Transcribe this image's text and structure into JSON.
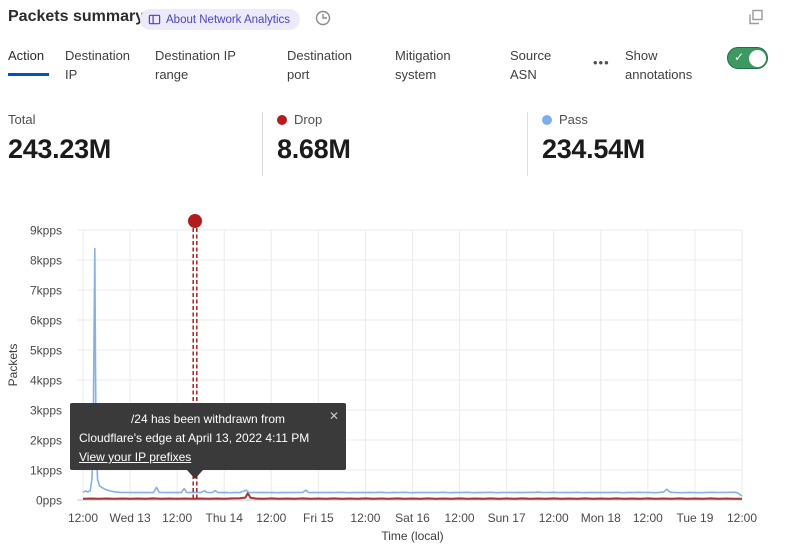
{
  "header": {
    "title": "Packets summary",
    "badge_label": "About Network Analytics",
    "badge_color": "#4a44c4",
    "badge_bg": "#edebfb"
  },
  "tabs": {
    "items": [
      {
        "label": "Action",
        "active": true
      },
      {
        "label": "Destination IP",
        "active": false
      },
      {
        "label": "Destination IP range",
        "active": false
      },
      {
        "label": "Destination port",
        "active": false
      },
      {
        "label": "Mitigation system",
        "active": false
      },
      {
        "label": "Source ASN",
        "active": false
      }
    ],
    "more_label": "•••",
    "show_annotations": {
      "label": "Show annotations",
      "enabled": true,
      "toggle_color": "#3c9960"
    }
  },
  "stats": {
    "cards": [
      {
        "label": "Total",
        "value": "243.23M",
        "dot_color": ""
      },
      {
        "label": "Drop",
        "value": "8.68M",
        "dot_color": "#b51d1d"
      },
      {
        "label": "Pass",
        "value": "234.54M",
        "dot_color": "#7fadea"
      }
    ]
  },
  "tooltip": {
    "line1": "/24 has been withdrawn from",
    "line2": "Cloudflare's edge at April 13, 2022 4:11 PM",
    "link_label": "View your IP prefixes",
    "close_glyph": "✕"
  },
  "chart_data": {
    "type": "line",
    "title": "Packets summary",
    "xlabel": "Time (local)",
    "ylabel": "Packets",
    "ylim": [
      0,
      9000
    ],
    "x_range_hours": [
      0,
      168
    ],
    "grid": true,
    "yticks": {
      "values": [
        0,
        1000,
        2000,
        3000,
        4000,
        5000,
        6000,
        7000,
        8000,
        9000
      ],
      "labels": [
        "0pps",
        "1kpps",
        "2kpps",
        "3kpps",
        "4kpps",
        "5kpps",
        "6kpps",
        "7kpps",
        "8kpps",
        "9kpps"
      ]
    },
    "xticks": {
      "hours": [
        0,
        12,
        24,
        36,
        48,
        60,
        72,
        84,
        96,
        108,
        120,
        132,
        144,
        156,
        168
      ],
      "labels": [
        "12:00",
        "Wed 13",
        "12:00",
        "Thu 14",
        "12:00",
        "Fri 15",
        "12:00",
        "Sat 16",
        "12:00",
        "Sun 17",
        "12:00",
        "Mon 18",
        "12:00",
        "Tue 19",
        "12:00"
      ]
    },
    "annotation": {
      "x_hours": 28.55,
      "color": "#b11c1c",
      "description": "IP prefix /24 withdrawn from Cloudflare's edge, April 13, 2022 4:11 PM"
    },
    "series": [
      {
        "name": "Pass",
        "color": "#84b1e9",
        "points": [
          [
            0,
            260
          ],
          [
            0.6,
            300
          ],
          [
            1.2,
            270
          ],
          [
            1.8,
            300
          ],
          [
            2.3,
            700
          ],
          [
            2.6,
            2200
          ],
          [
            3.0,
            8380
          ],
          [
            3.3,
            2400
          ],
          [
            3.7,
            700
          ],
          [
            4.2,
            470
          ],
          [
            5,
            400
          ],
          [
            6,
            340
          ],
          [
            7,
            300
          ],
          [
            8,
            275
          ],
          [
            9,
            260
          ],
          [
            10,
            250
          ],
          [
            11,
            255
          ],
          [
            12,
            250
          ],
          [
            13,
            245
          ],
          [
            14,
            252
          ],
          [
            15,
            248
          ],
          [
            16,
            252
          ],
          [
            17,
            246
          ],
          [
            18,
            252
          ],
          [
            18.7,
            420
          ],
          [
            19.4,
            258
          ],
          [
            20,
            250
          ],
          [
            21,
            246
          ],
          [
            22,
            252
          ],
          [
            23,
            248
          ],
          [
            24,
            252
          ],
          [
            25,
            246
          ],
          [
            25.8,
            380
          ],
          [
            26.4,
            252
          ],
          [
            27,
            246
          ],
          [
            28,
            255
          ],
          [
            29,
            250
          ],
          [
            30,
            246
          ],
          [
            31,
            310
          ],
          [
            31.6,
            250
          ],
          [
            32.4,
            246
          ],
          [
            33,
            252
          ],
          [
            33.7,
            315
          ],
          [
            34.4,
            250
          ],
          [
            35,
            246
          ],
          [
            36,
            252
          ],
          [
            37,
            248
          ],
          [
            38,
            244
          ],
          [
            39,
            252
          ],
          [
            40,
            248
          ],
          [
            41.6,
            330
          ],
          [
            42.3,
            250
          ],
          [
            43,
            246
          ],
          [
            44,
            252
          ],
          [
            45,
            248
          ],
          [
            46,
            252
          ],
          [
            47,
            246
          ],
          [
            48,
            255
          ],
          [
            49,
            248
          ],
          [
            50,
            244
          ],
          [
            51,
            252
          ],
          [
            52,
            248
          ],
          [
            53,
            252
          ],
          [
            54,
            246
          ],
          [
            55,
            252
          ],
          [
            56,
            250
          ],
          [
            56.8,
            330
          ],
          [
            57.5,
            250
          ],
          [
            58,
            246
          ],
          [
            59,
            252
          ],
          [
            60,
            248
          ],
          [
            61,
            252
          ],
          [
            62,
            246
          ],
          [
            63,
            252
          ],
          [
            64,
            248
          ],
          [
            65,
            252
          ],
          [
            66,
            256
          ],
          [
            67,
            248
          ],
          [
            68,
            244
          ],
          [
            69,
            252
          ],
          [
            70,
            248
          ],
          [
            71,
            252
          ],
          [
            72,
            246
          ],
          [
            73,
            252
          ],
          [
            74,
            248
          ],
          [
            75,
            252
          ],
          [
            76,
            256
          ],
          [
            77,
            248
          ],
          [
            78,
            244
          ],
          [
            79,
            252
          ],
          [
            80,
            248
          ],
          [
            81,
            252
          ],
          [
            82,
            256
          ],
          [
            83,
            248
          ],
          [
            84,
            244
          ],
          [
            85,
            252
          ],
          [
            86,
            248
          ],
          [
            87,
            252
          ],
          [
            88,
            246
          ],
          [
            89,
            252
          ],
          [
            90,
            248
          ],
          [
            91,
            252
          ],
          [
            92,
            256
          ],
          [
            93,
            248
          ],
          [
            94,
            244
          ],
          [
            95,
            252
          ],
          [
            96,
            248
          ],
          [
            97,
            252
          ],
          [
            98,
            256
          ],
          [
            99,
            248
          ],
          [
            100,
            244
          ],
          [
            101,
            252
          ],
          [
            102,
            248
          ],
          [
            103,
            252
          ],
          [
            104,
            256
          ],
          [
            105,
            248
          ],
          [
            106,
            244
          ],
          [
            107,
            252
          ],
          [
            108,
            250
          ],
          [
            109,
            252
          ],
          [
            110,
            246
          ],
          [
            111,
            252
          ],
          [
            112,
            248
          ],
          [
            113,
            252
          ],
          [
            114,
            256
          ],
          [
            115,
            252
          ],
          [
            116,
            262
          ],
          [
            117,
            255
          ],
          [
            118,
            250
          ],
          [
            119,
            255
          ],
          [
            120,
            258
          ],
          [
            121,
            250
          ],
          [
            122,
            246
          ],
          [
            123,
            252
          ],
          [
            124,
            248
          ],
          [
            125,
            252
          ],
          [
            126,
            256
          ],
          [
            127,
            248
          ],
          [
            128,
            244
          ],
          [
            129,
            252
          ],
          [
            130,
            248
          ],
          [
            131,
            252
          ],
          [
            132,
            246
          ],
          [
            133,
            252
          ],
          [
            134,
            248
          ],
          [
            135,
            252
          ],
          [
            136,
            256
          ],
          [
            137,
            248
          ],
          [
            138,
            244
          ],
          [
            139,
            252
          ],
          [
            140,
            248
          ],
          [
            141,
            252
          ],
          [
            142,
            256
          ],
          [
            143,
            250
          ],
          [
            144,
            252
          ],
          [
            145,
            248
          ],
          [
            146,
            244
          ],
          [
            147,
            252
          ],
          [
            148,
            262
          ],
          [
            148.8,
            360
          ],
          [
            149.6,
            262
          ],
          [
            150.5,
            252
          ],
          [
            151.5,
            248
          ],
          [
            153,
            244
          ],
          [
            154.5,
            252
          ],
          [
            156,
            248
          ],
          [
            157.5,
            244
          ],
          [
            159,
            252
          ],
          [
            160.5,
            256
          ],
          [
            162,
            250
          ],
          [
            163.5,
            252
          ],
          [
            165,
            256
          ],
          [
            166.2,
            260
          ],
          [
            167,
            230
          ],
          [
            167.6,
            170
          ],
          [
            168,
            140
          ]
        ]
      },
      {
        "name": "Drop",
        "color": "#a33636",
        "points": [
          [
            0,
            40
          ],
          [
            2,
            50
          ],
          [
            4,
            42
          ],
          [
            6,
            50
          ],
          [
            8,
            44
          ],
          [
            10,
            50
          ],
          [
            12,
            42
          ],
          [
            14,
            50
          ],
          [
            16,
            44
          ],
          [
            18,
            52
          ],
          [
            20,
            42
          ],
          [
            22,
            50
          ],
          [
            24,
            44
          ],
          [
            26,
            50
          ],
          [
            28,
            42
          ],
          [
            30,
            50
          ],
          [
            32,
            44
          ],
          [
            34,
            50
          ],
          [
            36,
            44
          ],
          [
            38,
            52
          ],
          [
            40,
            60
          ],
          [
            41.4,
            80
          ],
          [
            42,
            230
          ],
          [
            42.7,
            75
          ],
          [
            44,
            50
          ],
          [
            46,
            44
          ],
          [
            48,
            52
          ],
          [
            50,
            44
          ],
          [
            52,
            50
          ],
          [
            54,
            44
          ],
          [
            56,
            52
          ],
          [
            58,
            44
          ],
          [
            60,
            50
          ],
          [
            62,
            44
          ],
          [
            64,
            52
          ],
          [
            66,
            44
          ],
          [
            68,
            50
          ],
          [
            70,
            44
          ],
          [
            72,
            52
          ],
          [
            74,
            44
          ],
          [
            76,
            50
          ],
          [
            78,
            44
          ],
          [
            80,
            52
          ],
          [
            82,
            44
          ],
          [
            84,
            50
          ],
          [
            86,
            44
          ],
          [
            88,
            52
          ],
          [
            90,
            44
          ],
          [
            92,
            50
          ],
          [
            94,
            44
          ],
          [
            96,
            52
          ],
          [
            98,
            44
          ],
          [
            100,
            50
          ],
          [
            102,
            44
          ],
          [
            104,
            52
          ],
          [
            106,
            44
          ],
          [
            108,
            50
          ],
          [
            110,
            44
          ],
          [
            112,
            52
          ],
          [
            114,
            44
          ],
          [
            116,
            50
          ],
          [
            118,
            44
          ],
          [
            120,
            52
          ],
          [
            122,
            44
          ],
          [
            124,
            50
          ],
          [
            126,
            44
          ],
          [
            128,
            52
          ],
          [
            130,
            44
          ],
          [
            132,
            50
          ],
          [
            134,
            44
          ],
          [
            136,
            52
          ],
          [
            138,
            44
          ],
          [
            140,
            50
          ],
          [
            142,
            44
          ],
          [
            144,
            52
          ],
          [
            146,
            44
          ],
          [
            148,
            50
          ],
          [
            150,
            44
          ],
          [
            152,
            52
          ],
          [
            154,
            44
          ],
          [
            156,
            50
          ],
          [
            158,
            44
          ],
          [
            160,
            52
          ],
          [
            162,
            44
          ],
          [
            164,
            50
          ],
          [
            166,
            44
          ],
          [
            168,
            44
          ]
        ]
      }
    ]
  }
}
